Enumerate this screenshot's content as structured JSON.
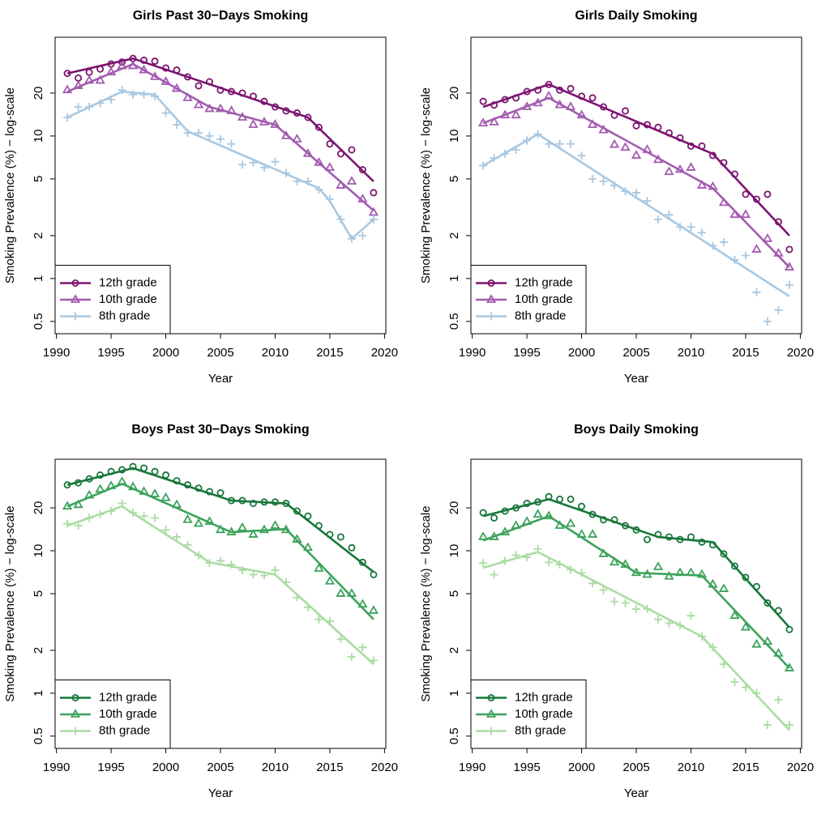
{
  "chart_data": [
    {
      "type": "line",
      "title": "Girls Past 30−Days Smoking",
      "x_label": "Year",
      "y_label": "Smoking Prevalence (%) − log-scale",
      "log_y": true,
      "legend": "bottomleft",
      "xlim": [
        1989.88,
        2020.12
      ],
      "ylim": [
        0.41,
        49.3
      ],
      "xticks": [
        1990,
        1995,
        2000,
        2005,
        2010,
        2015,
        2020
      ],
      "yticks": [
        0.5,
        1,
        2,
        5,
        10,
        20
      ],
      "x": [
        1991,
        1992,
        1993,
        1994,
        1995,
        1996,
        1997,
        1998,
        1999,
        2000,
        2001,
        2002,
        2003,
        2004,
        2005,
        2006,
        2007,
        2008,
        2009,
        2010,
        2011,
        2012,
        2013,
        2014,
        2015,
        2016,
        2017,
        2018,
        2019
      ],
      "series": [
        {
          "name": "12th grade",
          "color": "#7b1470",
          "marker": "circle",
          "values": [
            27.5,
            25.5,
            28,
            29.5,
            32,
            33,
            35,
            34,
            33.5,
            30,
            29,
            26,
            22.5,
            24,
            21,
            20.5,
            20,
            19,
            17.5,
            16,
            15,
            14.5,
            13.5,
            11.5,
            8.8,
            7.5,
            8,
            5.8,
            4
          ],
          "fit": {
            "x": [
              1991,
              1997,
              2013,
              2019
            ],
            "values": [
              27.5,
              35,
              13.5,
              4.8
            ]
          }
        },
        {
          "name": "10th grade",
          "color": "#a35bb0",
          "marker": "triangle",
          "values": [
            21,
            22.5,
            24.5,
            24.5,
            28,
            31,
            31,
            29,
            26,
            24,
            21.5,
            18.5,
            16.5,
            15.5,
            15.5,
            15,
            13.5,
            12,
            12.5,
            12,
            10,
            9.5,
            7.5,
            6.5,
            6,
            4.5,
            4.8,
            3.6,
            2.9
          ],
          "fit": {
            "x": [
              1991,
              1997,
              2004,
              2010,
              2019
            ],
            "values": [
              20.5,
              32,
              16,
              12,
              3
            ]
          }
        },
        {
          "name": "8th grade",
          "color": "#a9c8e1",
          "marker": "plus",
          "values": [
            13.5,
            16,
            16,
            17,
            18,
            21,
            19.5,
            19.5,
            19,
            14.5,
            12,
            10.5,
            10.5,
            10,
            9.5,
            8.8,
            6.3,
            6.5,
            6,
            6.6,
            5.5,
            4.8,
            4.8,
            4.2,
            3.6,
            2.6,
            1.9,
            2,
            2.6
          ],
          "fit": {
            "x": [
              1991,
              1996,
              1999,
              2002,
              2014,
              2015,
              2017,
              2019
            ],
            "values": [
              13.5,
              20.5,
              19.5,
              10.8,
              4.3,
              3.5,
              1.9,
              2.6
            ]
          }
        }
      ]
    },
    {
      "type": "line",
      "title": "Girls Daily Smoking",
      "x_label": "Year",
      "y_label": "Smoking Prevalence (%) − log-scale",
      "log_y": true,
      "legend": "bottomleft",
      "xlim": [
        1989.88,
        2020.12
      ],
      "ylim": [
        0.41,
        49.3
      ],
      "xticks": [
        1990,
        1995,
        2000,
        2005,
        2010,
        2015,
        2020
      ],
      "yticks": [
        0.5,
        1,
        2,
        5,
        10,
        20
      ],
      "x": [
        1991,
        1992,
        1993,
        1994,
        1995,
        1996,
        1997,
        1998,
        1999,
        2000,
        2001,
        2002,
        2003,
        2004,
        2005,
        2006,
        2007,
        2008,
        2009,
        2010,
        2011,
        2012,
        2013,
        2014,
        2015,
        2016,
        2017,
        2018,
        2019
      ],
      "series": [
        {
          "name": "12th grade",
          "color": "#7b1470",
          "marker": "circle",
          "values": [
            17.5,
            16.5,
            18,
            18.5,
            20.5,
            21,
            23,
            21,
            21.5,
            19,
            18.5,
            16,
            14,
            15,
            11.8,
            12,
            11.5,
            10.5,
            9.7,
            8.5,
            8.5,
            7.3,
            6.5,
            5.4,
            3.9,
            3.6,
            3.9,
            2.5,
            1.6
          ],
          "fit": {
            "x": [
              1991,
              1997,
              2012,
              2019
            ],
            "values": [
              16,
              23,
              7.5,
              2
            ]
          }
        },
        {
          "name": "10th grade",
          "color": "#a35bb0",
          "marker": "triangle",
          "values": [
            12.3,
            12.5,
            14,
            14,
            16,
            17,
            19,
            16.5,
            16,
            14,
            12,
            11,
            8.7,
            8.3,
            7.3,
            8,
            6.8,
            5.6,
            5.8,
            6,
            4.5,
            4.4,
            3.4,
            2.8,
            2.8,
            1.6,
            1.9,
            1.5,
            1.2
          ],
          "fit": {
            "x": [
              1991,
              1997,
              2012,
              2019
            ],
            "values": [
              12.3,
              18.5,
              4.3,
              1.2
            ]
          }
        },
        {
          "name": "8th grade",
          "color": "#a9c8e1",
          "marker": "plus",
          "values": [
            6.2,
            7,
            7.5,
            8,
            9.3,
            10.3,
            8.8,
            8.8,
            8.8,
            7.3,
            5,
            4.8,
            4.5,
            4.1,
            4,
            3.5,
            2.6,
            2.8,
            2.3,
            2.3,
            2.1,
            1.7,
            1.8,
            1.35,
            1.45,
            0.8,
            0.5,
            0.6,
            0.9
          ],
          "fit": {
            "x": [
              1991,
              1996,
              2019
            ],
            "values": [
              6.2,
              10.3,
              0.75
            ]
          }
        }
      ]
    },
    {
      "type": "line",
      "title": "Boys Past 30−Days Smoking",
      "x_label": "Year",
      "y_label": "Smoking Prevalence (%) − log-scale",
      "log_y": true,
      "legend": "bottomleft",
      "xlim": [
        1989.88,
        2020.12
      ],
      "ylim": [
        0.41,
        43.9
      ],
      "xticks": [
        1990,
        1995,
        2000,
        2005,
        2010,
        2015,
        2020
      ],
      "yticks": [
        0.5,
        1,
        2,
        5,
        10,
        20
      ],
      "x": [
        1991,
        1992,
        1993,
        1994,
        1995,
        1996,
        1997,
        1998,
        1999,
        2000,
        2001,
        2002,
        2003,
        2004,
        2005,
        2006,
        2007,
        2008,
        2009,
        2010,
        2011,
        2012,
        2013,
        2014,
        2015,
        2016,
        2017,
        2018,
        2019
      ],
      "series": [
        {
          "name": "12th grade",
          "color": "#17773a",
          "marker": "circle",
          "values": [
            29,
            30,
            32,
            34,
            36,
            37,
            39,
            38,
            36,
            34,
            31,
            29,
            27.5,
            26,
            25.5,
            22.5,
            22.5,
            21.5,
            22,
            22,
            21.5,
            19,
            17.5,
            15,
            13,
            12.5,
            10.5,
            8.3,
            6.8
          ],
          "fit": {
            "x": [
              1991,
              1997,
              2006,
              2011,
              2019
            ],
            "values": [
              29,
              38,
              22.5,
              21.5,
              7.1
            ]
          }
        },
        {
          "name": "10th grade",
          "color": "#3ca35c",
          "marker": "triangle",
          "values": [
            20.5,
            21,
            24.5,
            27,
            28.5,
            30.5,
            28,
            26,
            25,
            23.5,
            21,
            16.5,
            15.5,
            16,
            14,
            13.5,
            14.5,
            13,
            14,
            15,
            14,
            12,
            10.5,
            7.5,
            6.1,
            5,
            5,
            4.2,
            3.8
          ],
          "fit": {
            "x": [
              1991,
              1996,
              2006,
              2011,
              2019
            ],
            "values": [
              20.5,
              29.5,
              13.5,
              14.2,
              3.3
            ]
          }
        },
        {
          "name": "8th grade",
          "color": "#aadca2",
          "marker": "plus",
          "values": [
            15.5,
            15,
            17,
            18,
            19,
            21.5,
            18.5,
            17.5,
            17,
            14,
            12.5,
            11,
            9.3,
            8.2,
            8.5,
            8,
            7.3,
            6.8,
            6.7,
            7.3,
            6,
            4.7,
            4,
            3.3,
            3.2,
            2.4,
            1.8,
            2.1,
            1.7
          ],
          "fit": {
            "x": [
              1991,
              1996,
              2004,
              2010,
              2019
            ],
            "values": [
              15,
              20.5,
              8.3,
              6.8,
              1.6
            ]
          }
        }
      ]
    },
    {
      "type": "line",
      "title": "Boys Daily Smoking",
      "x_label": "Year",
      "y_label": "Smoking Prevalence (%) − log-scale",
      "log_y": true,
      "legend": "bottomleft",
      "xlim": [
        1989.88,
        2020.12
      ],
      "ylim": [
        0.41,
        43.9
      ],
      "xticks": [
        1990,
        1995,
        2000,
        2005,
        2010,
        2015,
        2020
      ],
      "yticks": [
        0.5,
        1,
        2,
        5,
        10,
        20
      ],
      "x": [
        1991,
        1992,
        1993,
        1994,
        1995,
        1996,
        1997,
        1998,
        1999,
        2000,
        2001,
        2002,
        2003,
        2004,
        2005,
        2006,
        2007,
        2008,
        2009,
        2010,
        2011,
        2012,
        2013,
        2014,
        2015,
        2016,
        2017,
        2018,
        2019
      ],
      "series": [
        {
          "name": "12th grade",
          "color": "#17773a",
          "marker": "circle",
          "values": [
            18.5,
            17,
            19,
            20,
            21.5,
            22,
            24,
            23,
            23,
            20.5,
            18,
            16.5,
            16.5,
            15,
            14,
            12,
            13,
            12.5,
            12,
            12.5,
            11.5,
            11,
            9.5,
            7.8,
            6.5,
            5.6,
            4.3,
            3.8,
            2.8
          ],
          "fit": {
            "x": [
              1991,
              1997,
              2007,
              2012,
              2019
            ],
            "values": [
              17.5,
              23,
              12.5,
              11.5,
              2.9
            ]
          }
        },
        {
          "name": "10th grade",
          "color": "#3ca35c",
          "marker": "triangle",
          "values": [
            12.5,
            12.5,
            13.5,
            15,
            16,
            18,
            17.5,
            15,
            15.5,
            13,
            13,
            9.5,
            8.3,
            8,
            7,
            6.8,
            7.7,
            6.6,
            7,
            7,
            6.8,
            5.8,
            5.4,
            3.5,
            2.9,
            2.2,
            2.3,
            1.9,
            1.5
          ],
          "fit": {
            "x": [
              1991,
              1997,
              2005,
              2011,
              2019
            ],
            "values": [
              11.8,
              17.5,
              7,
              6.7,
              1.5
            ]
          }
        },
        {
          "name": "8th grade",
          "color": "#aadca2",
          "marker": "plus",
          "values": [
            8.2,
            6.8,
            8.5,
            9.3,
            9,
            10.3,
            8.3,
            8,
            7.4,
            7,
            5.9,
            5.3,
            4.4,
            4.3,
            3.9,
            3.9,
            3.3,
            3.1,
            3,
            3.5,
            2.5,
            2.1,
            1.6,
            1.2,
            1.1,
            1,
            0.6,
            0.9,
            0.6
          ],
          "fit": {
            "x": [
              1991,
              1996,
              2011,
              2019
            ],
            "values": [
              7.6,
              9.8,
              2.5,
              0.55
            ]
          }
        }
      ]
    }
  ]
}
